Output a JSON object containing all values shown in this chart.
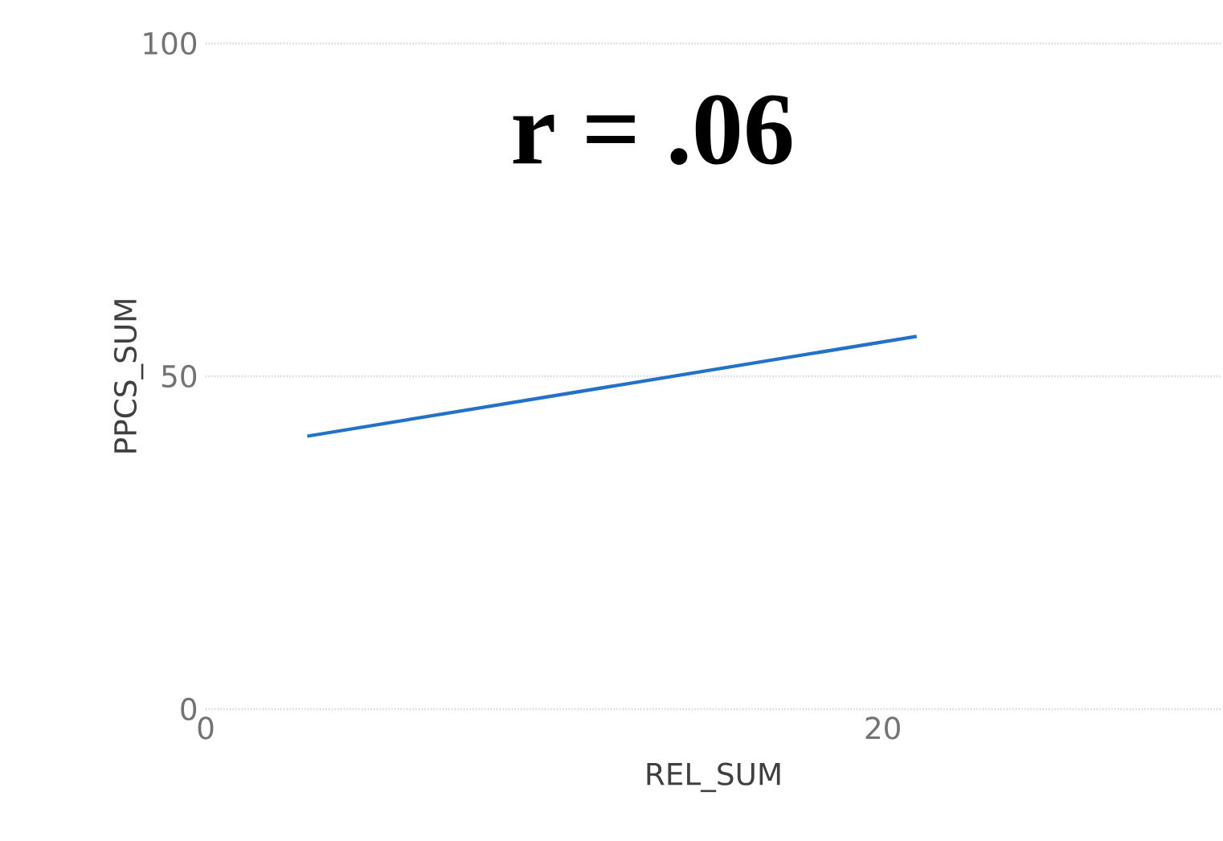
{
  "chart_data": {
    "type": "line",
    "title": "r = .06",
    "xlabel": "REL_SUM",
    "ylabel": "PPCS_SUM",
    "x": [
      3,
      21
    ],
    "series": [
      {
        "color": "#2372c8",
        "values": [
          41,
          56
        ]
      }
    ],
    "xlim": [
      0,
      30
    ],
    "ylim": [
      0,
      100
    ],
    "xticks": [
      0,
      20
    ],
    "yticks": [
      0,
      50,
      100
    ],
    "grid": "y",
    "marker": "none",
    "line_style": "solid"
  }
}
